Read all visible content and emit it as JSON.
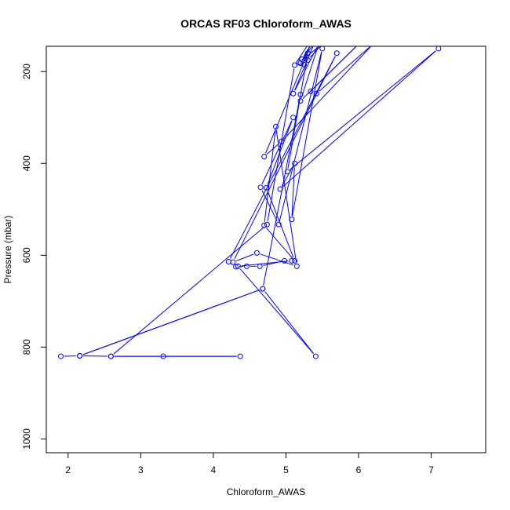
{
  "chart_data": {
    "type": "line",
    "title": "ORCAS RF03 Chloroform_AWAS",
    "xlabel": "Chloroform_AWAS",
    "ylabel": "Pressure (mbar)",
    "xlim": [
      1.7,
      7.75
    ],
    "ylim": [
      1030,
      145
    ],
    "y_reversed": true,
    "x_ticks": [
      2,
      3,
      4,
      5,
      6,
      7
    ],
    "y_ticks": [
      200,
      400,
      600,
      800,
      1000
    ],
    "grid": false,
    "series": [
      {
        "color": "#0000ff",
        "marker": "open-circle",
        "points": [
          [
            1.9,
            820
          ],
          [
            2.16,
            819
          ],
          [
            2.59,
            820
          ],
          [
            3.31,
            820
          ],
          [
            4.37,
            820
          ],
          [
            2.59,
            820
          ],
          [
            4.74,
            533
          ],
          [
            5.12,
            186
          ],
          [
            5.35,
            130
          ],
          [
            5.25,
            185
          ],
          [
            5.3,
            175
          ],
          [
            5.5,
            140
          ],
          [
            5.18,
            180
          ],
          [
            5.22,
            173
          ],
          [
            5.35,
            140
          ],
          [
            5.2,
            182
          ],
          [
            5.4,
            135
          ],
          [
            5.1,
            248
          ],
          [
            5.45,
            140
          ],
          [
            5.2,
            264
          ],
          [
            6.0,
            140
          ],
          [
            5.34,
            243
          ],
          [
            5.42,
            248
          ],
          [
            6.2,
            140
          ],
          [
            4.94,
            352
          ],
          [
            4.7,
            385
          ],
          [
            5.3,
            160
          ],
          [
            5.02,
            418
          ],
          [
            7.1,
            150
          ],
          [
            4.92,
            456
          ],
          [
            5.12,
            400
          ],
          [
            5.08,
            522
          ],
          [
            5.5,
            150
          ],
          [
            4.9,
            533
          ],
          [
            4.65,
            452
          ],
          [
            5.1,
            300
          ],
          [
            4.73,
            453
          ],
          [
            5.12,
            612
          ],
          [
            4.7,
            535
          ],
          [
            4.86,
            320
          ],
          [
            5.15,
            624
          ],
          [
            4.6,
            595
          ],
          [
            4.27,
            615
          ],
          [
            5.7,
            160
          ],
          [
            4.21,
            614
          ],
          [
            4.31,
            625
          ],
          [
            4.46,
            624
          ],
          [
            4.64,
            624
          ],
          [
            4.98,
            612
          ],
          [
            5.08,
            612
          ],
          [
            4.34,
            624
          ],
          [
            5.41,
            820
          ],
          [
            4.68,
            673
          ],
          [
            2.16,
            819
          ],
          [
            4.68,
            673
          ],
          [
            5.2,
            250
          ]
        ]
      }
    ]
  }
}
